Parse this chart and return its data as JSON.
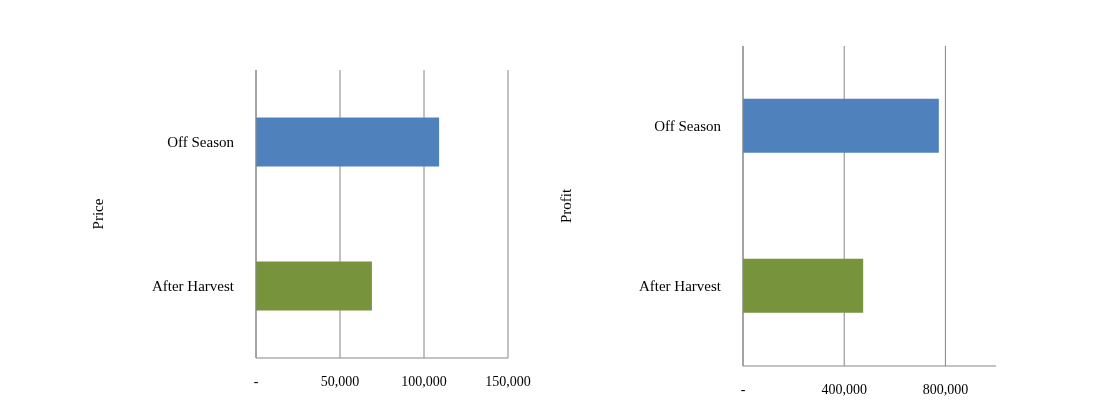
{
  "chart_data": [
    {
      "type": "bar",
      "orientation": "horizontal",
      "ylabel": "Price",
      "categories": [
        "Off Season",
        "After Harvest"
      ],
      "values": [
        109000,
        69000
      ],
      "colors": [
        "#4f81bd",
        "#77933c"
      ],
      "xlim": [
        0,
        150000
      ],
      "xticks": [
        {
          "value": 0,
          "label": "-"
        },
        {
          "value": 50000,
          "label": "50,000"
        },
        {
          "value": 100000,
          "label": "100,000"
        },
        {
          "value": 150000,
          "label": "150,000"
        }
      ],
      "grid": "x",
      "legend": false
    },
    {
      "type": "bar",
      "orientation": "horizontal",
      "ylabel": "Profit",
      "categories": [
        "Off Season",
        "After Harvest"
      ],
      "values": [
        774000,
        475000
      ],
      "colors": [
        "#4f81bd",
        "#77933c"
      ],
      "xlim": [
        0,
        1000000
      ],
      "xticks": [
        {
          "value": 0,
          "label": "-"
        },
        {
          "value": 400000,
          "label": "400,000"
        },
        {
          "value": 800000,
          "label": "800,000"
        }
      ],
      "grid": "x",
      "legend": false
    }
  ]
}
